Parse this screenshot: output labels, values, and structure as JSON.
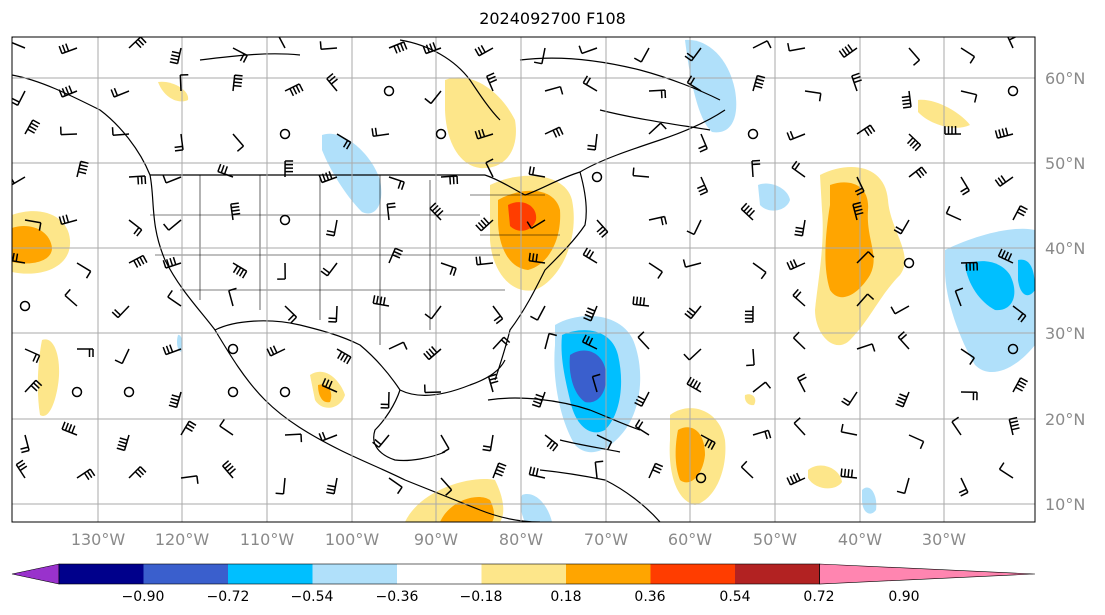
{
  "title": "2024092700 F108",
  "map": {
    "lon_labels": [
      "130°W",
      "120°W",
      "110°W",
      "100°W",
      "90°W",
      "80°W",
      "70°W",
      "60°W",
      "50°W",
      "40°W",
      "30°W"
    ],
    "lat_labels": [
      "60°N",
      "50°N",
      "40°N",
      "30°N",
      "20°N",
      "10°N"
    ]
  },
  "colorbar": {
    "tick_labels": [
      "−0.90",
      "−0.72",
      "−0.54",
      "−0.36",
      "−0.18",
      "0.18",
      "0.36",
      "0.54",
      "0.72",
      "0.90"
    ],
    "colors": [
      "#9932cc",
      "#00008b",
      "#3a5fcd",
      "#00bfff",
      "#b0e0fa",
      "#ffffff",
      "#fde68a",
      "#ffa500",
      "#ff3d00",
      "#b22222",
      "#ff85b0"
    ],
    "extend": "both"
  },
  "colors": {
    "gridline": "#aaaaaa",
    "coastline": "#000000",
    "label": "#8a8a8a"
  }
}
